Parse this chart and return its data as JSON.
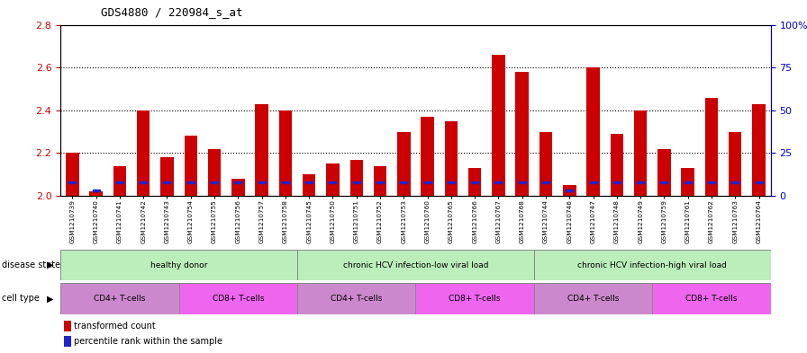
{
  "title": "GDS4880 / 220984_s_at",
  "samples": [
    "GSM1210739",
    "GSM1210740",
    "GSM1210741",
    "GSM1210742",
    "GSM1210743",
    "GSM1210754",
    "GSM1210755",
    "GSM1210756",
    "GSM1210757",
    "GSM1210758",
    "GSM1210745",
    "GSM1210750",
    "GSM1210751",
    "GSM1210752",
    "GSM1210753",
    "GSM1210760",
    "GSM1210765",
    "GSM1210766",
    "GSM1210767",
    "GSM1210768",
    "GSM1210744",
    "GSM1210746",
    "GSM1210747",
    "GSM1210748",
    "GSM1210749",
    "GSM1210759",
    "GSM1210761",
    "GSM1210762",
    "GSM1210763",
    "GSM1210764"
  ],
  "transformed_count": [
    2.2,
    2.02,
    2.14,
    2.4,
    2.18,
    2.28,
    2.22,
    2.08,
    2.43,
    2.4,
    2.1,
    2.15,
    2.17,
    2.14,
    2.3,
    2.37,
    2.35,
    2.13,
    2.66,
    2.58,
    2.3,
    2.05,
    2.6,
    2.29,
    2.4,
    2.22,
    2.13,
    2.46,
    2.3,
    2.43
  ],
  "percentile_rank": [
    8,
    3,
    8,
    8,
    8,
    8,
    8,
    8,
    8,
    8,
    8,
    8,
    8,
    8,
    8,
    8,
    8,
    8,
    8,
    8,
    8,
    3,
    8,
    8,
    8,
    8,
    8,
    8,
    8,
    8
  ],
  "ylim_left": [
    2.0,
    2.8
  ],
  "ylim_right": [
    0,
    100
  ],
  "yticks_left": [
    2.0,
    2.2,
    2.4,
    2.6,
    2.8
  ],
  "yticks_right": [
    0,
    25,
    50,
    75,
    100
  ],
  "ytick_right_labels": [
    "0",
    "25",
    "50",
    "75",
    "100%"
  ],
  "bar_color": "#cc0000",
  "blue_color": "#2222cc",
  "baseline": 2.0,
  "ds_groups": [
    {
      "label": "healthy donor",
      "start": 0,
      "end": 9,
      "color": "#bbeebb"
    },
    {
      "label": "chronic HCV infection-low viral load",
      "start": 10,
      "end": 19,
      "color": "#bbeebb"
    },
    {
      "label": "chronic HCV infection-high viral load",
      "start": 20,
      "end": 29,
      "color": "#bbeebb"
    }
  ],
  "ct_groups": [
    {
      "label": "CD4+ T-cells",
      "start": 0,
      "end": 4,
      "color": "#cc88cc"
    },
    {
      "label": "CD8+ T-cells",
      "start": 5,
      "end": 9,
      "color": "#ee66ee"
    },
    {
      "label": "CD4+ T-cells",
      "start": 10,
      "end": 14,
      "color": "#cc88cc"
    },
    {
      "label": "CD8+ T-cells",
      "start": 15,
      "end": 19,
      "color": "#ee66ee"
    },
    {
      "label": "CD4+ T-cells",
      "start": 20,
      "end": 24,
      "color": "#cc88cc"
    },
    {
      "label": "CD8+ T-cells",
      "start": 25,
      "end": 29,
      "color": "#ee66ee"
    }
  ],
  "label_color_left": "#cc0000",
  "label_color_right": "#0000cc",
  "xtick_bg": "#dddddd"
}
